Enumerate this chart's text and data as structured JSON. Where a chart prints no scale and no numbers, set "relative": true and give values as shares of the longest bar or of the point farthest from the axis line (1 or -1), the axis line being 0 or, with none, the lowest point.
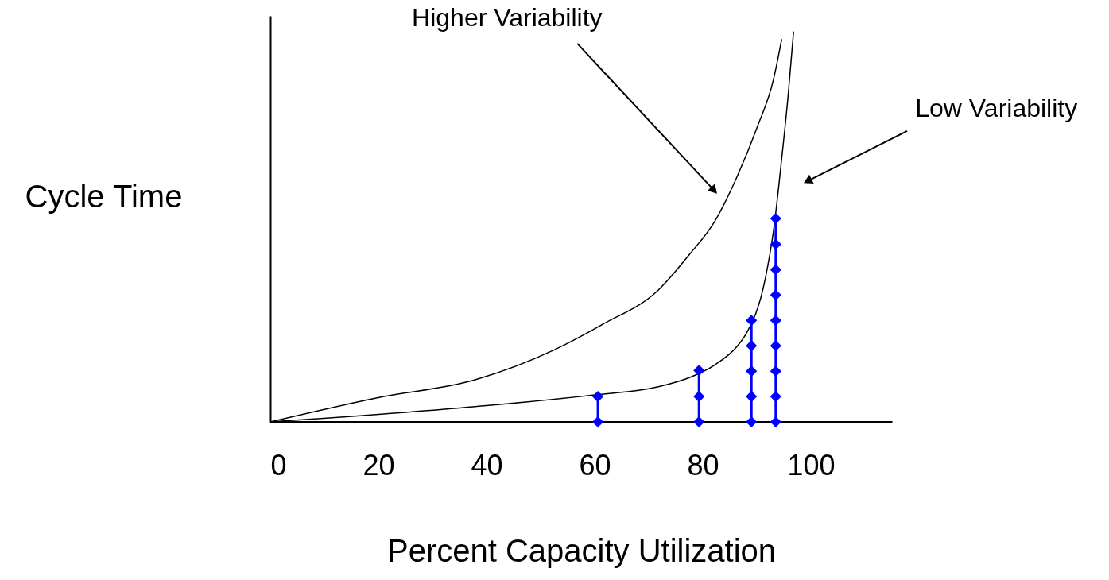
{
  "chart_data": {
    "type": "line",
    "relative": true,
    "xlabel": "Percent Capacity Utilization",
    "ylabel": "Cycle Time",
    "xlim": [
      0,
      115
    ],
    "xticks": [
      0,
      20,
      40,
      60,
      80,
      100
    ],
    "grid": false,
    "series": [
      {
        "color": "#000000",
        "marker": "none",
        "x": [
          0,
          20.3,
          37.9,
          52.6,
          61.5,
          71.8,
          77.6,
          82.1,
          86.5,
          90.1,
          93.1,
          94.6
        ],
        "values": [
          0,
          0.063,
          0.108,
          0.185,
          0.25,
          0.338,
          0.43,
          0.511,
          0.633,
          0.756,
          0.878,
          0.98
        ]
      },
      {
        "color": "#000000",
        "marker": "none",
        "x": [
          0,
          37.9,
          60,
          71.8,
          77.6,
          82.1,
          86.5,
          88,
          91.6,
          93.1,
          94.6,
          95.8,
          96.8
        ],
        "values": [
          0,
          0.039,
          0.069,
          0.09,
          0.114,
          0.145,
          0.196,
          0.225,
          0.369,
          0.491,
          0.674,
          0.837,
          1.0
        ]
      },
      {
        "color": "#0000ff",
        "marker": "diamond",
        "x": [
          60.6,
          60.6
        ],
        "values": [
          0,
          0.065
        ]
      },
      {
        "color": "#0000ff",
        "marker": "diamond",
        "x": [
          79.3,
          79.3,
          79.3
        ],
        "values": [
          0,
          0.065,
          0.132
        ]
      },
      {
        "color": "#0000ff",
        "marker": "diamond",
        "x": [
          89,
          89,
          89,
          89,
          89
        ],
        "values": [
          0,
          0.065,
          0.13,
          0.195,
          0.26
        ]
      },
      {
        "color": "#0000ff",
        "marker": "diamond",
        "x": [
          93.5,
          93.5,
          93.5,
          93.5,
          93.5,
          93.5,
          93.5,
          93.5,
          93.5
        ],
        "values": [
          0,
          0.065,
          0.13,
          0.195,
          0.26,
          0.325,
          0.39,
          0.455,
          0.521
        ]
      }
    ],
    "annotations": [
      "Higher Variability",
      "Low Variability"
    ]
  }
}
